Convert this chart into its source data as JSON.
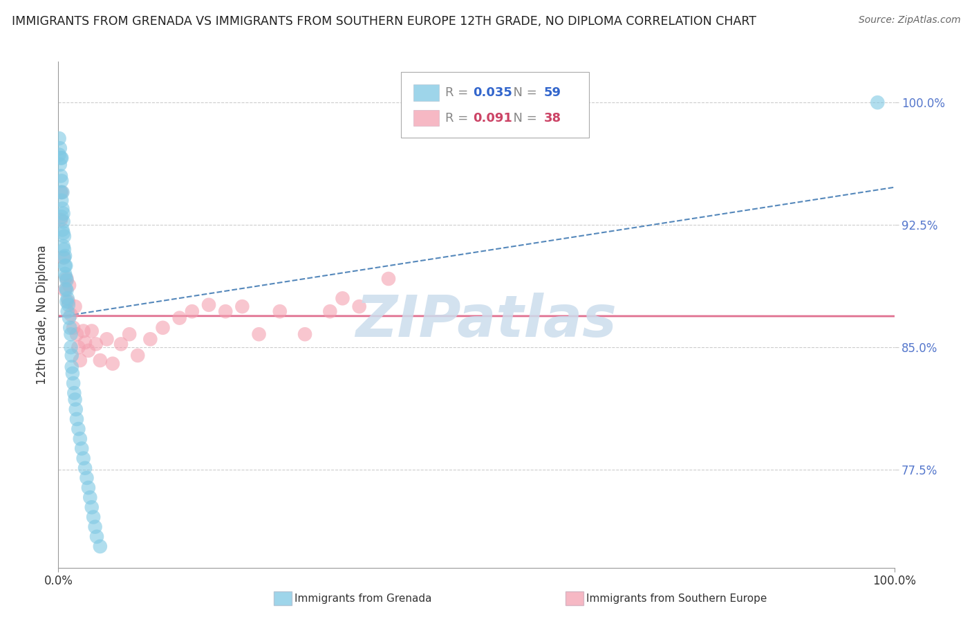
{
  "title": "IMMIGRANTS FROM GRENADA VS IMMIGRANTS FROM SOUTHERN EUROPE 12TH GRADE, NO DIPLOMA CORRELATION CHART",
  "source": "Source: ZipAtlas.com",
  "ylabel": "12th Grade, No Diploma",
  "legend_label1": "Immigrants from Grenada",
  "legend_label2": "Immigrants from Southern Europe",
  "R1": 0.035,
  "N1": 59,
  "R2": 0.091,
  "N2": 38,
  "color1": "#7ec8e3",
  "color2": "#f4a0b0",
  "trendline_color1": "#5588bb",
  "trendline_color2": "#e07090",
  "xlim": [
    0.0,
    1.0
  ],
  "ylim": [
    0.715,
    1.025
  ],
  "xtick_positions": [
    0.0,
    1.0
  ],
  "xtick_labels": [
    "0.0%",
    "100.0%"
  ],
  "ytick_values": [
    0.775,
    0.85,
    0.925,
    1.0
  ],
  "ytick_labels": [
    "77.5%",
    "85.0%",
    "92.5%",
    "100.0%"
  ],
  "ytick_color": "#5577cc",
  "background_color": "#ffffff",
  "grid_color": "#cccccc",
  "watermark_text": "ZIPatlas",
  "watermark_color": "#ccdded",
  "blue_x": [
    0.001,
    0.001,
    0.002,
    0.002,
    0.003,
    0.003,
    0.003,
    0.004,
    0.004,
    0.004,
    0.004,
    0.005,
    0.005,
    0.005,
    0.006,
    0.006,
    0.006,
    0.006,
    0.007,
    0.007,
    0.007,
    0.008,
    0.008,
    0.008,
    0.009,
    0.009,
    0.009,
    0.01,
    0.01,
    0.01,
    0.011,
    0.011,
    0.012,
    0.013,
    0.014,
    0.015,
    0.015,
    0.016,
    0.016,
    0.017,
    0.018,
    0.019,
    0.02,
    0.021,
    0.022,
    0.024,
    0.026,
    0.028,
    0.03,
    0.032,
    0.034,
    0.036,
    0.038,
    0.04,
    0.042,
    0.044,
    0.046,
    0.05,
    0.98
  ],
  "blue_y": [
    0.978,
    0.968,
    0.972,
    0.962,
    0.966,
    0.955,
    0.945,
    0.966,
    0.952,
    0.94,
    0.93,
    0.945,
    0.935,
    0.922,
    0.932,
    0.927,
    0.92,
    0.912,
    0.918,
    0.91,
    0.905,
    0.906,
    0.9,
    0.895,
    0.9,
    0.893,
    0.886,
    0.891,
    0.885,
    0.878,
    0.88,
    0.872,
    0.876,
    0.868,
    0.862,
    0.858,
    0.85,
    0.845,
    0.838,
    0.834,
    0.828,
    0.822,
    0.818,
    0.812,
    0.806,
    0.8,
    0.794,
    0.788,
    0.782,
    0.776,
    0.77,
    0.764,
    0.758,
    0.752,
    0.746,
    0.74,
    0.734,
    0.728,
    1.0
  ],
  "pink_x": [
    0.003,
    0.004,
    0.006,
    0.008,
    0.01,
    0.012,
    0.013,
    0.015,
    0.018,
    0.02,
    0.022,
    0.024,
    0.026,
    0.03,
    0.032,
    0.036,
    0.04,
    0.045,
    0.05,
    0.058,
    0.065,
    0.075,
    0.085,
    0.095,
    0.11,
    0.125,
    0.145,
    0.16,
    0.18,
    0.2,
    0.22,
    0.24,
    0.265,
    0.295,
    0.325,
    0.36,
    0.34,
    0.395
  ],
  "pink_y": [
    0.928,
    0.945,
    0.905,
    0.885,
    0.892,
    0.878,
    0.888,
    0.87,
    0.862,
    0.875,
    0.858,
    0.85,
    0.842,
    0.86,
    0.853,
    0.848,
    0.86,
    0.852,
    0.842,
    0.855,
    0.84,
    0.852,
    0.858,
    0.845,
    0.855,
    0.862,
    0.868,
    0.872,
    0.876,
    0.872,
    0.875,
    0.858,
    0.872,
    0.858,
    0.872,
    0.875,
    0.88,
    0.892
  ]
}
